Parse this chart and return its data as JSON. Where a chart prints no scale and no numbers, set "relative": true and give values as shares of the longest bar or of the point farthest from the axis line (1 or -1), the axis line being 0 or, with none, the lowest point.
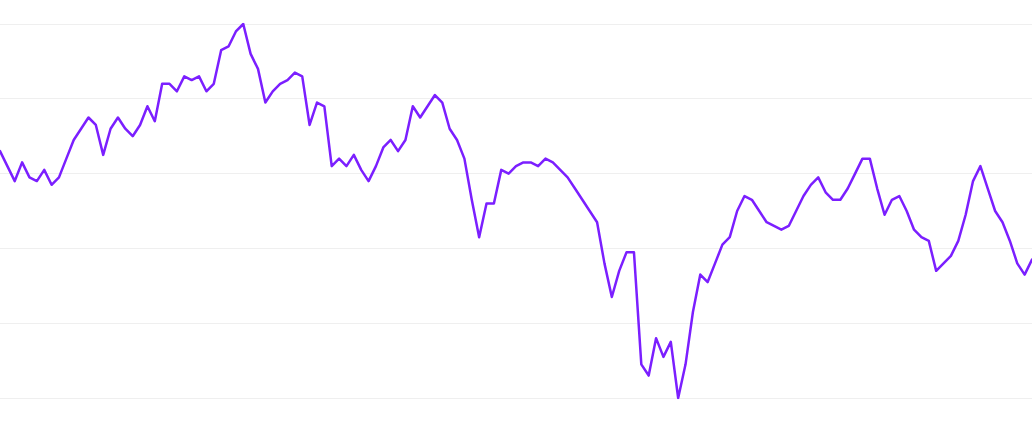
{
  "chart_data": {
    "type": "line",
    "relative": true,
    "grid": "y",
    "legend": false,
    "marker": "none",
    "line_style": "solid",
    "categories": [
      null,
      null,
      null,
      null,
      null,
      null,
      null,
      null,
      null,
      null,
      null,
      null,
      null,
      null,
      null,
      null,
      null,
      null,
      null,
      null,
      null,
      null,
      null,
      null,
      null,
      null,
      null,
      null,
      null,
      null,
      null,
      null,
      null,
      null,
      null,
      null,
      null,
      null,
      null,
      null,
      null,
      null,
      null,
      null,
      null,
      null,
      null,
      null,
      null,
      null,
      null,
      null,
      null,
      null,
      null,
      null,
      null,
      null,
      null,
      null,
      null,
      null,
      null,
      null,
      null,
      null,
      null,
      null,
      null,
      null,
      null,
      null,
      null,
      null,
      null,
      null,
      null,
      null,
      null,
      null,
      null,
      null,
      null,
      null,
      null,
      null,
      null,
      null,
      null,
      null,
      null,
      null,
      null,
      null,
      null,
      null,
      null,
      null,
      null,
      null,
      null,
      null,
      null,
      null,
      null,
      null,
      null,
      null,
      null,
      null,
      null,
      null,
      null,
      null,
      null,
      null,
      null,
      null,
      null,
      null,
      null,
      null,
      null,
      null,
      null,
      null,
      null,
      null,
      null,
      null,
      null,
      null,
      null,
      null,
      null,
      null,
      null,
      null,
      null,
      null,
      null
    ],
    "series": [
      {
        "color": "#7b1fff",
        "values": [
          0.66,
          0.62,
          0.58,
          0.63,
          0.59,
          0.58,
          0.61,
          0.57,
          0.59,
          0.64,
          0.69,
          0.72,
          0.75,
          0.73,
          0.65,
          0.72,
          0.75,
          0.72,
          0.7,
          0.73,
          0.78,
          0.74,
          0.84,
          0.84,
          0.82,
          0.86,
          0.85,
          0.86,
          0.82,
          0.84,
          0.93,
          0.94,
          0.98,
          1,
          0.92,
          0.88,
          0.79,
          0.82,
          0.84,
          0.85,
          0.87,
          0.86,
          0.73,
          0.79,
          0.78,
          0.62,
          0.64,
          0.62,
          0.65,
          0.61,
          0.58,
          0.62,
          0.67,
          0.69,
          0.66,
          0.69,
          0.78,
          0.75,
          0.78,
          0.81,
          0.79,
          0.72,
          0.69,
          0.64,
          0.53,
          0.43,
          0.52,
          0.52,
          0.61,
          0.6,
          0.62,
          0.63,
          0.63,
          0.62,
          0.64,
          0.63,
          0.61,
          0.59,
          0.56,
          0.53,
          0.5,
          0.47,
          0.36,
          0.27,
          0.34,
          0.39,
          0.39,
          0.09,
          0.06,
          0.16,
          0.11,
          0.15,
          0,
          0.09,
          0.23,
          0.33,
          0.31,
          0.36,
          0.41,
          0.43,
          0.5,
          0.54,
          0.53,
          0.5,
          0.47,
          0.46,
          0.45,
          0.46,
          0.5,
          0.54,
          0.57,
          0.59,
          0.55,
          0.53,
          0.53,
          0.56,
          0.6,
          0.64,
          0.64,
          0.56,
          0.49,
          0.53,
          0.54,
          0.5,
          0.45,
          0.43,
          0.42,
          0.34,
          0.36,
          0.38,
          0.42,
          0.49,
          0.58,
          0.62,
          0.56,
          0.5,
          0.47,
          0.42,
          0.36,
          0.33,
          0.37
        ]
      }
    ]
  }
}
